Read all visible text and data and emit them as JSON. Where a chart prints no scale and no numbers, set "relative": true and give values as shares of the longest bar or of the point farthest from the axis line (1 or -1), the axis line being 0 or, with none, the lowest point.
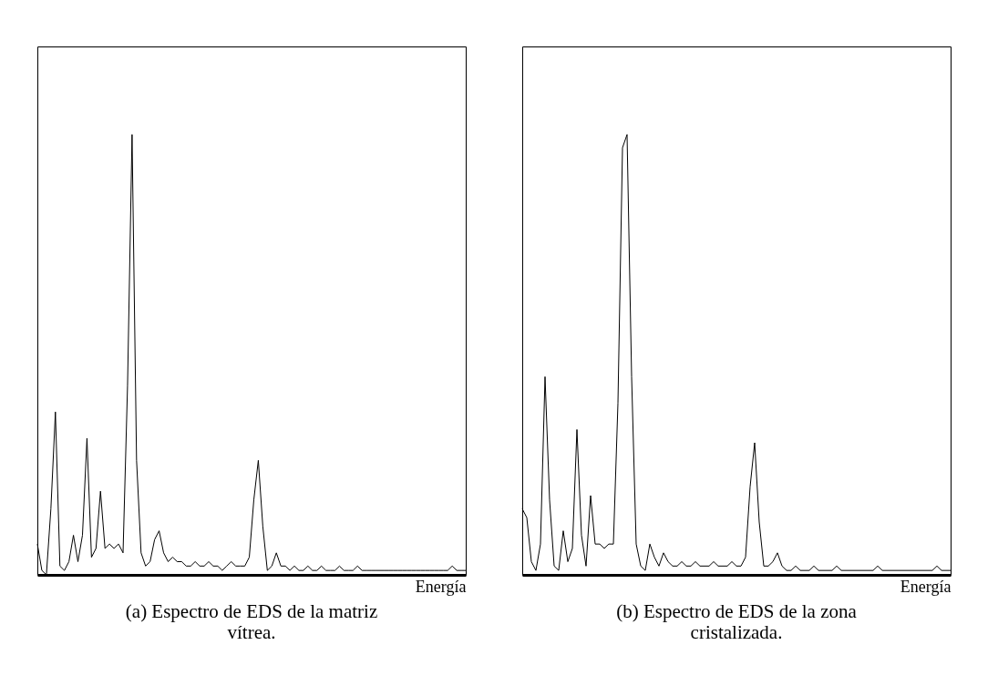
{
  "chart_data": [
    {
      "type": "line",
      "title": "(a) Espectro de EDS de la matriz vítrea.",
      "xlabel": "Energía",
      "relative": true,
      "categories": [
        null,
        null,
        null,
        null,
        null,
        null,
        null,
        null,
        null,
        null,
        null,
        null,
        null,
        null,
        null,
        null,
        null,
        null,
        null,
        null,
        null,
        null,
        null,
        null,
        null,
        null,
        null,
        null,
        null,
        null,
        null,
        null,
        null,
        null,
        null,
        null,
        null,
        null,
        null,
        null,
        null,
        null,
        null,
        null,
        null,
        null,
        null,
        null,
        null,
        null,
        null,
        null,
        null,
        null,
        null,
        null,
        null,
        null,
        null,
        null,
        null,
        null,
        null,
        null,
        null,
        null,
        null,
        null,
        null,
        null,
        null,
        null,
        null,
        null,
        null,
        null,
        null,
        null,
        null,
        null,
        null,
        null,
        null,
        null,
        null,
        null,
        null,
        null,
        null,
        null,
        null,
        null,
        null,
        null,
        null,
        null
      ],
      "values": [
        0.07,
        0.01,
        0.0,
        0.15,
        0.37,
        0.02,
        0.01,
        0.03,
        0.09,
        0.03,
        0.09,
        0.31,
        0.04,
        0.06,
        0.19,
        0.06,
        0.07,
        0.06,
        0.07,
        0.05,
        0.43,
        1.0,
        0.26,
        0.05,
        0.02,
        0.03,
        0.08,
        0.1,
        0.05,
        0.03,
        0.04,
        0.03,
        0.03,
        0.02,
        0.02,
        0.03,
        0.02,
        0.02,
        0.03,
        0.02,
        0.02,
        0.01,
        0.02,
        0.03,
        0.02,
        0.02,
        0.02,
        0.04,
        0.17,
        0.26,
        0.11,
        0.01,
        0.02,
        0.05,
        0.02,
        0.02,
        0.01,
        0.02,
        0.01,
        0.01,
        0.02,
        0.01,
        0.01,
        0.02,
        0.01,
        0.01,
        0.01,
        0.02,
        0.01,
        0.01,
        0.01,
        0.02,
        0.01,
        0.01,
        0.01,
        0.01,
        0.01,
        0.01,
        0.01,
        0.01,
        0.01,
        0.01,
        0.01,
        0.01,
        0.01,
        0.01,
        0.01,
        0.01,
        0.01,
        0.01,
        0.01,
        0.01,
        0.02,
        0.01,
        0.01,
        0.01
      ],
      "color": "#000000"
    },
    {
      "type": "line",
      "title": "(b) Espectro de EDS de la zona cristalizada.",
      "xlabel": "Energía",
      "relative": true,
      "categories": [
        null,
        null,
        null,
        null,
        null,
        null,
        null,
        null,
        null,
        null,
        null,
        null,
        null,
        null,
        null,
        null,
        null,
        null,
        null,
        null,
        null,
        null,
        null,
        null,
        null,
        null,
        null,
        null,
        null,
        null,
        null,
        null,
        null,
        null,
        null,
        null,
        null,
        null,
        null,
        null,
        null,
        null,
        null,
        null,
        null,
        null,
        null,
        null,
        null,
        null,
        null,
        null,
        null,
        null,
        null,
        null,
        null,
        null,
        null,
        null,
        null,
        null,
        null,
        null,
        null,
        null,
        null,
        null,
        null,
        null,
        null,
        null,
        null,
        null,
        null,
        null,
        null,
        null,
        null,
        null,
        null,
        null,
        null,
        null,
        null,
        null,
        null,
        null,
        null,
        null,
        null,
        null,
        null,
        null,
        null
      ],
      "values": [
        0.15,
        0.13,
        0.03,
        0.01,
        0.07,
        0.45,
        0.17,
        0.02,
        0.01,
        0.1,
        0.03,
        0.06,
        0.33,
        0.09,
        0.02,
        0.18,
        0.07,
        0.07,
        0.06,
        0.07,
        0.07,
        0.39,
        0.97,
        1.0,
        0.45,
        0.07,
        0.02,
        0.01,
        0.07,
        0.04,
        0.02,
        0.05,
        0.03,
        0.02,
        0.02,
        0.03,
        0.02,
        0.02,
        0.03,
        0.02,
        0.02,
        0.02,
        0.03,
        0.02,
        0.02,
        0.02,
        0.03,
        0.02,
        0.02,
        0.04,
        0.2,
        0.3,
        0.12,
        0.02,
        0.02,
        0.03,
        0.05,
        0.02,
        0.01,
        0.01,
        0.02,
        0.01,
        0.01,
        0.01,
        0.02,
        0.01,
        0.01,
        0.01,
        0.01,
        0.02,
        0.01,
        0.01,
        0.01,
        0.01,
        0.01,
        0.01,
        0.01,
        0.01,
        0.02,
        0.01,
        0.01,
        0.01,
        0.01,
        0.01,
        0.01,
        0.01,
        0.01,
        0.01,
        0.01,
        0.01,
        0.01,
        0.02,
        0.01,
        0.01,
        0.01
      ],
      "color": "#000000"
    }
  ]
}
